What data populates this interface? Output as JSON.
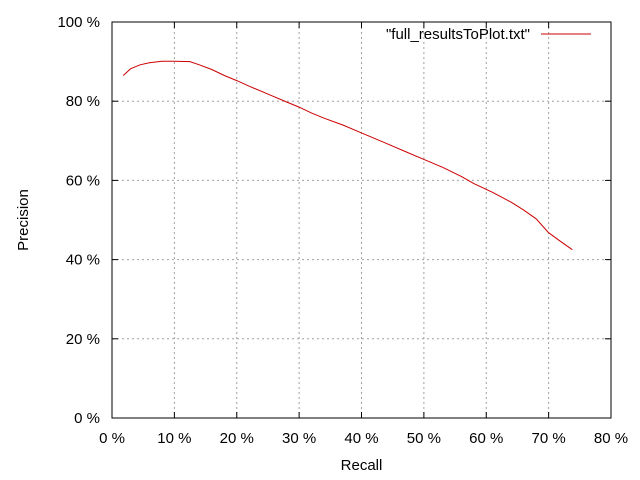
{
  "chart_data": {
    "type": "line",
    "xlabel": "Recall",
    "ylabel": "Precision",
    "xlim": [
      0,
      80
    ],
    "ylim": [
      0,
      100
    ],
    "x_ticks": [
      "0 %",
      "10 %",
      "20 %",
      "30 %",
      "40 %",
      "50 %",
      "60 %",
      "70 %",
      "80 %"
    ],
    "y_ticks": [
      "0 %",
      "20 %",
      "40 %",
      "60 %",
      "80 %",
      "100 %"
    ],
    "grid": true,
    "legend_position": "top-right",
    "series": [
      {
        "name": "\"full_resultsToPlot.txt\"",
        "color": "#cc0000",
        "x": [
          1.8,
          3,
          4.5,
          6,
          8,
          10,
          12.5,
          14,
          16,
          18,
          20,
          22,
          25,
          28,
          30,
          32,
          34,
          37,
          40,
          43,
          47,
          50,
          53,
          56,
          58,
          61,
          64,
          66,
          68,
          70,
          72,
          73.8
        ],
        "y": [
          86.5,
          88.2,
          89.2,
          89.7,
          90.1,
          90.1,
          90.0,
          89.2,
          88.0,
          86.5,
          85.2,
          83.8,
          81.8,
          79.8,
          78.5,
          77.0,
          75.7,
          74.0,
          72.0,
          70.0,
          67.3,
          65.3,
          63.3,
          61.0,
          59.2,
          57.0,
          54.5,
          52.5,
          50.3,
          46.8,
          44.5,
          42.5
        ]
      }
    ]
  }
}
